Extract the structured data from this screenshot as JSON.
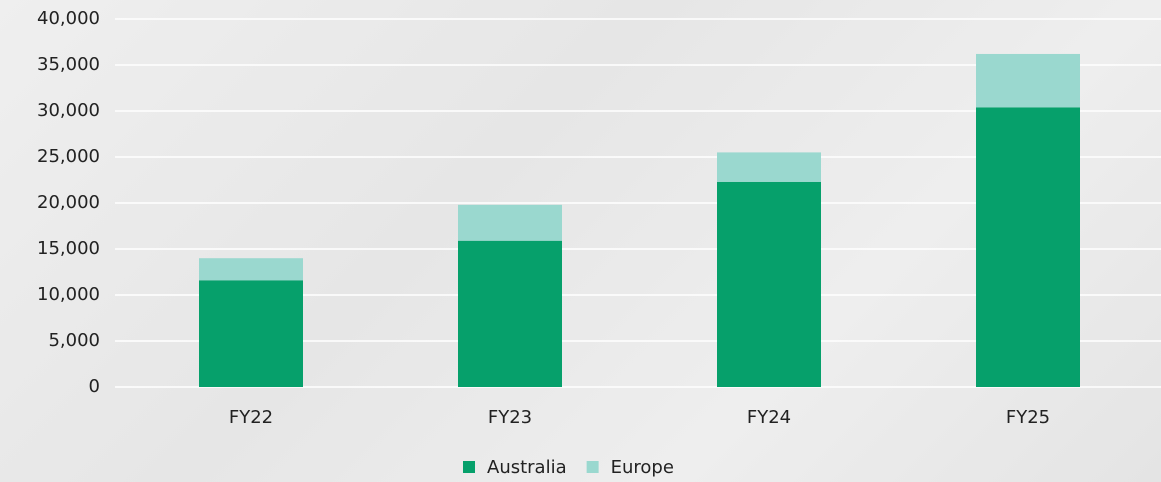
{
  "chart_data": {
    "type": "stacked_bar",
    "categories": [
      "FY22",
      "FY23",
      "FY24",
      "FY25"
    ],
    "series": [
      {
        "name": "Australia",
        "color": "#06a06b",
        "values": [
          11600,
          15900,
          22300,
          30400
        ]
      },
      {
        "name": "Europe",
        "color": "#9ad8cf",
        "values": [
          2400,
          3900,
          3200,
          5800
        ]
      }
    ],
    "ylim": [
      0,
      40000
    ],
    "yticks": [
      0,
      {
        "value": 5000,
        "label": "5,000"
      },
      {
        "value": 10000,
        "label": "10,000"
      },
      {
        "value": 15000,
        "label": "15,000"
      },
      {
        "value": 20000,
        "label": "20,000"
      },
      {
        "value": 25000,
        "label": "25,000"
      },
      {
        "value": 30000,
        "label": "30,000"
      },
      {
        "value": 35000,
        "label": "35,000"
      },
      {
        "value": 40000,
        "label": "40,000"
      }
    ],
    "grid": true,
    "legend": "bottom"
  }
}
